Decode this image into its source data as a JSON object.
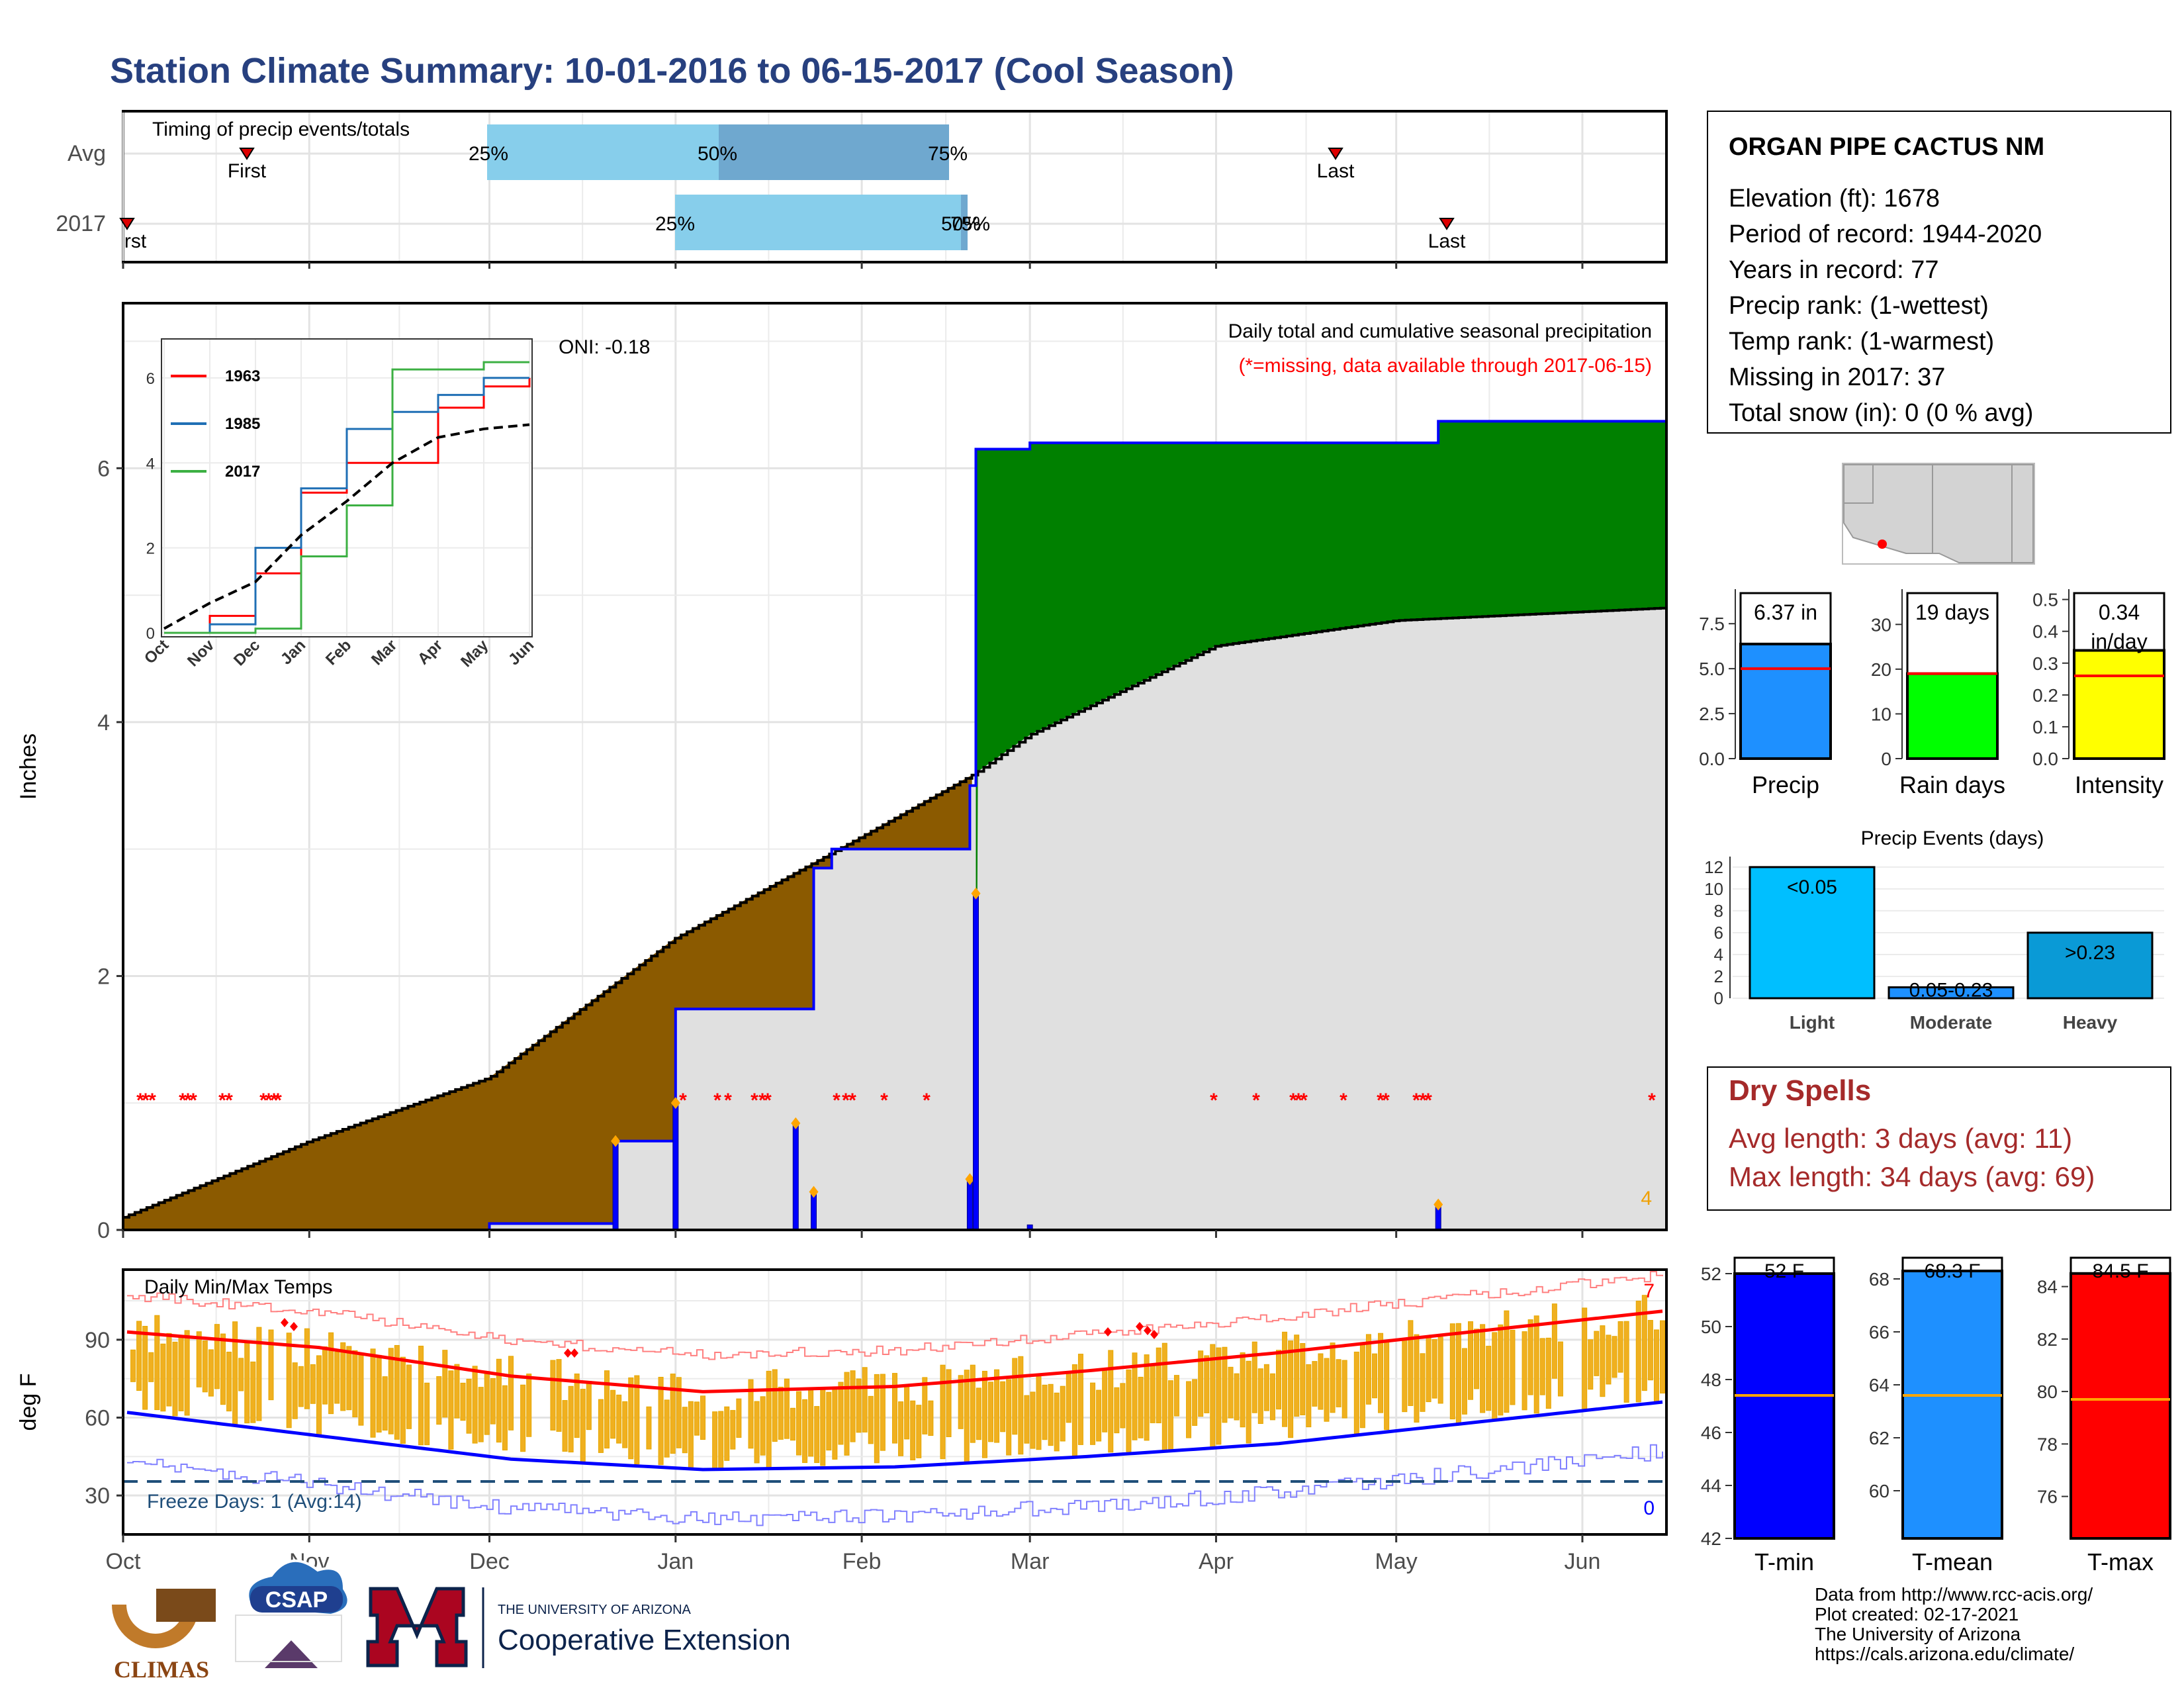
{
  "title": "Station Climate Summary: 10-01-2016 to 06-15-2017 (Cool Season)",
  "timing_panel": {
    "label": "Timing of precip events/totals",
    "rows": [
      "Avg",
      "2017"
    ],
    "avg": {
      "first": "First",
      "last": "Last",
      "p25": "25%",
      "p50": "50%",
      "p75": "75%"
    },
    "y2017": {
      "first": "First",
      "last": "Last",
      "p25": "25%",
      "p50": "50%",
      "p75": "75%"
    }
  },
  "station": {
    "name": "ORGAN PIPE CACTUS NM",
    "lines": [
      "Elevation (ft): 1678",
      "Period of record: 1944-2020",
      "Years in record: 77",
      "Precip rank:  (1-wettest)",
      "Temp rank:  (1-warmest)",
      "Missing in 2017: 37",
      "Total snow (in): 0 (0 % avg)"
    ]
  },
  "main_chart": {
    "ylabel": "Inches",
    "oni": "ONI: -0.18",
    "caption": "Daily total and cumulative seasonal precipitation",
    "missing_note": "(*=missing, data available through 2017-06-15)",
    "count_label": "4"
  },
  "inset": {
    "legend": [
      "1963",
      "1985",
      "2017"
    ],
    "months": [
      "Oct",
      "Nov",
      "Dec",
      "Jan",
      "Feb",
      "Mar",
      "Apr",
      "May",
      "Jun"
    ],
    "yticks": [
      "0",
      "2",
      "4",
      "6"
    ]
  },
  "temp_chart": {
    "ylabel": "deg F",
    "title": "Daily Min/Max Temps",
    "freeze_label": "Freeze Days: 1 (Avg:14)",
    "count_max": "7",
    "count_min": "0"
  },
  "months_axis": [
    "Oct",
    "Nov",
    "Dec",
    "Jan",
    "Feb",
    "Mar",
    "Apr",
    "May",
    "Jun"
  ],
  "summary_bars": {
    "precip": {
      "label": "Precip",
      "value_label": "6.37 in",
      "value": 6.37,
      "avg": 5.0,
      "yticks": [
        "0.0",
        "2.5",
        "5.0",
        "7.5"
      ]
    },
    "rain_days": {
      "label": "Rain days",
      "value_label": "19 days",
      "value": 19,
      "avg": 19,
      "yticks": [
        "0",
        "10",
        "20",
        "30"
      ]
    },
    "intensity": {
      "label": "Intensity",
      "value_label": "0.34 in/day",
      "value": 0.34,
      "avg": 0.26,
      "yticks": [
        "0.0",
        "0.1",
        "0.2",
        "0.3",
        "0.4",
        "0.5"
      ]
    }
  },
  "precip_events": {
    "title": "Precip Events (days)",
    "categories": [
      "Light",
      "Moderate",
      "Heavy"
    ],
    "values": [
      12,
      1,
      6
    ],
    "bar_labels": [
      "<0.05",
      "0.05-0.23",
      ">0.23"
    ],
    "yticks": [
      "0",
      "2",
      "4",
      "6",
      "8",
      "10",
      "12"
    ]
  },
  "dry_spells": {
    "title": "Dry Spells",
    "avg": "Avg length: 3 days (avg: 11)",
    "max": "Max length: 34 days (avg: 69)"
  },
  "temp_bars": {
    "tmin": {
      "label": "T-min",
      "value_label": "52 F",
      "value": 52,
      "avg": 47.4,
      "yticks": [
        "42",
        "44",
        "46",
        "48",
        "50",
        "52"
      ]
    },
    "tmean": {
      "label": "T-mean",
      "value_label": "68.3 F",
      "value": 68.3,
      "avg": 63.6,
      "yticks": [
        "60",
        "62",
        "64",
        "66",
        "68"
      ]
    },
    "tmax": {
      "label": "T-max",
      "value_label": "84.5 F",
      "value": 84.5,
      "avg": 79.7,
      "yticks": [
        "76",
        "78",
        "80",
        "82",
        "84"
      ]
    }
  },
  "footer": {
    "lines": [
      "Data from http://www.rcc-acis.org/",
      "Plot created: 02-17-2021",
      "The University of Arizona",
      "https://cals.arizona.edu/climate/"
    ],
    "logos": [
      "CLIMAS",
      "CSAP",
      "THE UNIVERSITY OF ARIZONA",
      "Cooperative Extension"
    ]
  },
  "colors": {
    "title": "#27407f",
    "green": "#008000",
    "brown": "#8b5a00",
    "gray_fill": "#e0e0e0",
    "blue": "#0000ff",
    "orange": "#f0b020",
    "red": "#ff0000",
    "light_blue": "#87ceeb",
    "dry": "#a52a2a"
  },
  "chart_data": [
    {
      "type": "area",
      "title": "Daily total and cumulative seasonal precipitation",
      "ylabel": "Inches",
      "ylim": [
        0,
        7
      ],
      "x_months": [
        "Oct",
        "Nov",
        "Dec",
        "Jan",
        "Feb",
        "Mar",
        "Apr",
        "May",
        "Jun"
      ],
      "series": [
        {
          "name": "2017 cumulative",
          "points": [
            [
              "2016-10-01",
              0
            ],
            [
              "2016-12-01",
              0.05
            ],
            [
              "2016-12-22",
              0.7
            ],
            [
              "2017-01-01",
              0.74
            ],
            [
              "2017-01-01",
              1.74
            ],
            [
              "2017-01-18",
              1.74
            ],
            [
              "2017-01-24",
              2.85
            ],
            [
              "2017-01-27",
              3.0
            ],
            [
              "2017-02-18",
              3.0
            ],
            [
              "2017-02-19",
              3.5
            ],
            [
              "2017-02-20",
              6.15
            ],
            [
              "2017-03-01",
              6.2
            ],
            [
              "2017-05-07",
              6.2
            ],
            [
              "2017-05-08",
              6.37
            ],
            [
              "2017-06-15",
              6.37
            ]
          ]
        },
        {
          "name": "average cumulative",
          "points": [
            [
              "2016-10-01",
              0.1
            ],
            [
              "2016-11-01",
              0.7
            ],
            [
              "2016-12-01",
              1.2
            ],
            [
              "2017-01-01",
              2.3
            ],
            [
              "2017-02-01",
              3.1
            ],
            [
              "2017-02-20",
              3.6
            ],
            [
              "2017-03-01",
              3.9
            ],
            [
              "2017-04-01",
              4.6
            ],
            [
              "2017-05-01",
              4.8
            ],
            [
              "2017-06-15",
              4.9
            ]
          ]
        }
      ],
      "daily_totals": [
        [
          "2016-12-22",
          0.7
        ],
        [
          "2017-01-01",
          1.0
        ],
        [
          "2017-01-21",
          0.84
        ],
        [
          "2017-01-24",
          0.3
        ],
        [
          "2017-02-19",
          0.4
        ],
        [
          "2017-02-20",
          2.65
        ],
        [
          "2017-03-01",
          0.04
        ],
        [
          "2017-05-08",
          0.2
        ]
      ]
    },
    {
      "type": "line",
      "title": "",
      "inset": true,
      "x_months": [
        "Oct",
        "Nov",
        "Dec",
        "Jan",
        "Feb",
        "Mar",
        "Apr",
        "May",
        "Jun"
      ],
      "ylim": [
        0,
        6.7
      ],
      "series": [
        {
          "name": "1963",
          "values": [
            0,
            0.4,
            1.4,
            3.3,
            4.0,
            4.0,
            5.3,
            5.8,
            6.0
          ]
        },
        {
          "name": "1985",
          "values": [
            0,
            0.2,
            2.0,
            3.4,
            4.8,
            5.2,
            5.6,
            6.0,
            6.0
          ]
        },
        {
          "name": "2017",
          "values": [
            0,
            0.0,
            0.1,
            1.8,
            3.0,
            6.2,
            6.2,
            6.37,
            6.37
          ]
        },
        {
          "name": "average",
          "values": [
            0.1,
            0.7,
            1.2,
            2.3,
            3.1,
            4.0,
            4.6,
            4.8,
            4.9
          ]
        }
      ]
    },
    {
      "type": "line",
      "title": "Daily Min/Max Temps",
      "ylabel": "deg F",
      "ylim": [
        15,
        115
      ],
      "x_months": [
        "Oct",
        "Nov",
        "Dec",
        "Jan",
        "Feb",
        "Mar",
        "Apr",
        "May",
        "Jun"
      ],
      "series": [
        {
          "name": "avg max",
          "values": [
            93,
            87,
            76,
            70,
            72,
            78,
            85,
            93,
            101
          ]
        },
        {
          "name": "avg min",
          "values": [
            62,
            53,
            44,
            40,
            41,
            45,
            50,
            58,
            66
          ]
        }
      ],
      "freeze_line": 32
    },
    {
      "type": "bar",
      "title": "Precip Events (days)",
      "categories": [
        "Light",
        "Moderate",
        "Heavy"
      ],
      "values": [
        12,
        1,
        6
      ],
      "ylim": [
        0,
        12
      ]
    }
  ]
}
